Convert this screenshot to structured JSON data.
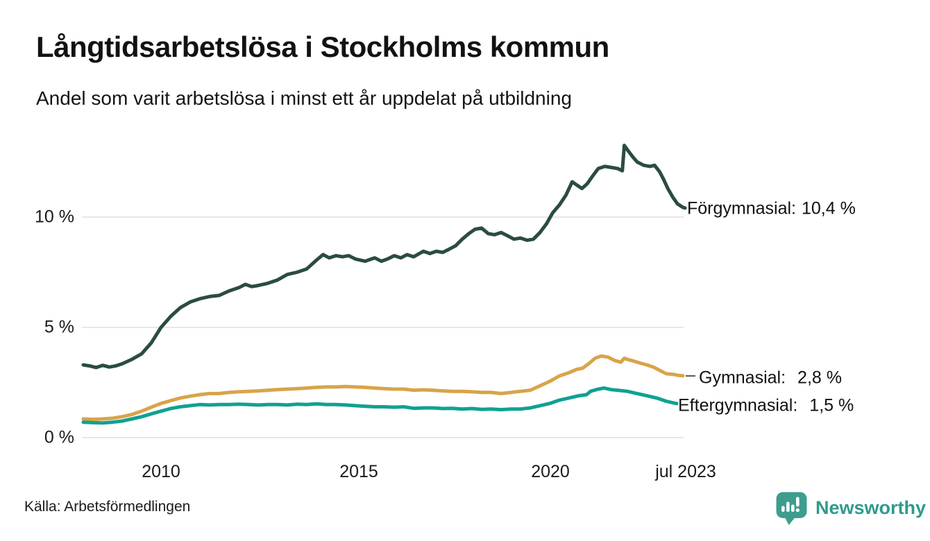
{
  "header": {
    "title": "Långtidsarbetslösa i Stockholms kommun",
    "subtitle": "Andel som varit arbetslösa i minst ett år uppdelat på utbildning"
  },
  "footer": {
    "source": "Källa: Arbetsförmedlingen",
    "brand_name": "Newsworthy",
    "brand_color": "#2e9b8c",
    "brand_icon": "newsworthy-barchart-pin-icon",
    "brand_icon_color": "#3e9d8e"
  },
  "chart_data": {
    "type": "line",
    "title": "Långtidsarbetslösa i Stockholms kommun",
    "subtitle": "Andel som varit arbetslösa i minst ett år uppdelat på utbildning",
    "unit": "%",
    "grid": true,
    "legend_position": "end-of-line-labels-right",
    "x_axis": {
      "ticks": [
        "2010",
        "2015",
        "2020",
        "jul 2023"
      ],
      "tick_years": [
        2010,
        2015,
        2020,
        2023.5
      ],
      "range": [
        2008,
        2023.58
      ]
    },
    "y_axis": {
      "ticks_top_to_bottom": [
        "10 %",
        "5 %",
        "0 %"
      ],
      "tick_values": [
        10,
        5,
        0
      ],
      "range": [
        0,
        13.5
      ]
    },
    "series": [
      {
        "name": "Förgymnasial",
        "label": "Förgymnasial:",
        "value_label": "10,4 %",
        "last_value": 10.4,
        "color": "#2b4c41",
        "points": [
          [
            2008.0,
            3.3
          ],
          [
            2008.17,
            3.25
          ],
          [
            2008.33,
            3.18
          ],
          [
            2008.5,
            3.28
          ],
          [
            2008.67,
            3.2
          ],
          [
            2008.83,
            3.25
          ],
          [
            2009.0,
            3.35
          ],
          [
            2009.25,
            3.55
          ],
          [
            2009.5,
            3.8
          ],
          [
            2009.75,
            4.3
          ],
          [
            2010.0,
            5.0
          ],
          [
            2010.25,
            5.5
          ],
          [
            2010.5,
            5.9
          ],
          [
            2010.75,
            6.15
          ],
          [
            2011.0,
            6.3
          ],
          [
            2011.25,
            6.4
          ],
          [
            2011.5,
            6.45
          ],
          [
            2011.75,
            6.65
          ],
          [
            2012.0,
            6.8
          ],
          [
            2012.17,
            6.95
          ],
          [
            2012.33,
            6.85
          ],
          [
            2012.5,
            6.9
          ],
          [
            2012.75,
            7.0
          ],
          [
            2013.0,
            7.15
          ],
          [
            2013.25,
            7.4
          ],
          [
            2013.5,
            7.5
          ],
          [
            2013.75,
            7.65
          ],
          [
            2014.0,
            8.05
          ],
          [
            2014.17,
            8.3
          ],
          [
            2014.33,
            8.15
          ],
          [
            2014.5,
            8.25
          ],
          [
            2014.67,
            8.2
          ],
          [
            2014.83,
            8.25
          ],
          [
            2015.0,
            8.1
          ],
          [
            2015.25,
            8.0
          ],
          [
            2015.5,
            8.15
          ],
          [
            2015.67,
            8.0
          ],
          [
            2015.83,
            8.1
          ],
          [
            2016.0,
            8.25
          ],
          [
            2016.17,
            8.15
          ],
          [
            2016.33,
            8.3
          ],
          [
            2016.5,
            8.2
          ],
          [
            2016.75,
            8.45
          ],
          [
            2016.92,
            8.35
          ],
          [
            2017.08,
            8.45
          ],
          [
            2017.25,
            8.4
          ],
          [
            2017.42,
            8.55
          ],
          [
            2017.58,
            8.7
          ],
          [
            2017.75,
            9.0
          ],
          [
            2017.92,
            9.25
          ],
          [
            2018.08,
            9.45
          ],
          [
            2018.25,
            9.5
          ],
          [
            2018.42,
            9.25
          ],
          [
            2018.58,
            9.2
          ],
          [
            2018.75,
            9.3
          ],
          [
            2018.92,
            9.15
          ],
          [
            2019.08,
            9.0
          ],
          [
            2019.25,
            9.05
          ],
          [
            2019.42,
            8.95
          ],
          [
            2019.58,
            9.0
          ],
          [
            2019.75,
            9.3
          ],
          [
            2019.92,
            9.7
          ],
          [
            2020.08,
            10.2
          ],
          [
            2020.25,
            10.55
          ],
          [
            2020.42,
            11.0
          ],
          [
            2020.58,
            11.6
          ],
          [
            2020.7,
            11.45
          ],
          [
            2020.83,
            11.3
          ],
          [
            2020.96,
            11.5
          ],
          [
            2021.1,
            11.85
          ],
          [
            2021.25,
            12.2
          ],
          [
            2021.42,
            12.3
          ],
          [
            2021.58,
            12.25
          ],
          [
            2021.75,
            12.2
          ],
          [
            2021.87,
            12.1
          ],
          [
            2021.92,
            13.25
          ],
          [
            2022.0,
            13.05
          ],
          [
            2022.13,
            12.75
          ],
          [
            2022.25,
            12.5
          ],
          [
            2022.42,
            12.35
          ],
          [
            2022.58,
            12.3
          ],
          [
            2022.7,
            12.35
          ],
          [
            2022.83,
            12.05
          ],
          [
            2022.92,
            11.75
          ],
          [
            2023.04,
            11.3
          ],
          [
            2023.17,
            10.9
          ],
          [
            2023.29,
            10.6
          ],
          [
            2023.42,
            10.45
          ],
          [
            2023.5,
            10.4
          ]
        ]
      },
      {
        "name": "Gymnasial",
        "label": "Gymnasial:",
        "value_label": "2,8 %",
        "last_value": 2.8,
        "color": "#d8a44a",
        "points": [
          [
            2008.0,
            0.85
          ],
          [
            2008.25,
            0.83
          ],
          [
            2008.5,
            0.85
          ],
          [
            2008.75,
            0.88
          ],
          [
            2009.0,
            0.95
          ],
          [
            2009.25,
            1.05
          ],
          [
            2009.5,
            1.2
          ],
          [
            2009.75,
            1.38
          ],
          [
            2010.0,
            1.55
          ],
          [
            2010.25,
            1.68
          ],
          [
            2010.5,
            1.8
          ],
          [
            2010.75,
            1.88
          ],
          [
            2011.0,
            1.95
          ],
          [
            2011.25,
            2.0
          ],
          [
            2011.5,
            2.0
          ],
          [
            2011.75,
            2.05
          ],
          [
            2012.0,
            2.08
          ],
          [
            2012.25,
            2.1
          ],
          [
            2012.5,
            2.12
          ],
          [
            2012.75,
            2.15
          ],
          [
            2013.0,
            2.18
          ],
          [
            2013.25,
            2.2
          ],
          [
            2013.5,
            2.22
          ],
          [
            2013.75,
            2.25
          ],
          [
            2014.0,
            2.28
          ],
          [
            2014.25,
            2.3
          ],
          [
            2014.5,
            2.3
          ],
          [
            2014.75,
            2.32
          ],
          [
            2015.0,
            2.3
          ],
          [
            2015.25,
            2.28
          ],
          [
            2015.5,
            2.25
          ],
          [
            2015.75,
            2.22
          ],
          [
            2016.0,
            2.2
          ],
          [
            2016.25,
            2.2
          ],
          [
            2016.5,
            2.15
          ],
          [
            2016.75,
            2.17
          ],
          [
            2017.0,
            2.15
          ],
          [
            2017.25,
            2.12
          ],
          [
            2017.5,
            2.1
          ],
          [
            2017.75,
            2.1
          ],
          [
            2018.0,
            2.08
          ],
          [
            2018.25,
            2.05
          ],
          [
            2018.5,
            2.05
          ],
          [
            2018.75,
            2.0
          ],
          [
            2019.0,
            2.05
          ],
          [
            2019.25,
            2.1
          ],
          [
            2019.5,
            2.15
          ],
          [
            2019.75,
            2.35
          ],
          [
            2020.0,
            2.55
          ],
          [
            2020.25,
            2.8
          ],
          [
            2020.5,
            2.95
          ],
          [
            2020.7,
            3.1
          ],
          [
            2020.85,
            3.15
          ],
          [
            2021.0,
            3.35
          ],
          [
            2021.17,
            3.6
          ],
          [
            2021.33,
            3.7
          ],
          [
            2021.5,
            3.65
          ],
          [
            2021.67,
            3.5
          ],
          [
            2021.83,
            3.42
          ],
          [
            2021.92,
            3.6
          ],
          [
            2022.0,
            3.55
          ],
          [
            2022.17,
            3.47
          ],
          [
            2022.33,
            3.38
          ],
          [
            2022.5,
            3.3
          ],
          [
            2022.67,
            3.2
          ],
          [
            2022.83,
            3.05
          ],
          [
            2023.0,
            2.9
          ],
          [
            2023.17,
            2.87
          ],
          [
            2023.33,
            2.82
          ],
          [
            2023.5,
            2.8
          ]
        ]
      },
      {
        "name": "Eftergymnasial",
        "label": "Eftergymnasial:",
        "value_label": "1,5 %",
        "last_value": 1.5,
        "color": "#10a192",
        "points": [
          [
            2008.0,
            0.7
          ],
          [
            2008.25,
            0.68
          ],
          [
            2008.5,
            0.67
          ],
          [
            2008.75,
            0.7
          ],
          [
            2009.0,
            0.75
          ],
          [
            2009.25,
            0.85
          ],
          [
            2009.5,
            0.95
          ],
          [
            2009.75,
            1.08
          ],
          [
            2010.0,
            1.2
          ],
          [
            2010.25,
            1.32
          ],
          [
            2010.5,
            1.4
          ],
          [
            2010.75,
            1.45
          ],
          [
            2011.0,
            1.5
          ],
          [
            2011.25,
            1.48
          ],
          [
            2011.5,
            1.5
          ],
          [
            2011.75,
            1.5
          ],
          [
            2012.0,
            1.52
          ],
          [
            2012.25,
            1.5
          ],
          [
            2012.5,
            1.48
          ],
          [
            2012.75,
            1.5
          ],
          [
            2013.0,
            1.5
          ],
          [
            2013.25,
            1.48
          ],
          [
            2013.5,
            1.52
          ],
          [
            2013.75,
            1.5
          ],
          [
            2014.0,
            1.53
          ],
          [
            2014.25,
            1.5
          ],
          [
            2014.5,
            1.5
          ],
          [
            2014.75,
            1.48
          ],
          [
            2015.0,
            1.45
          ],
          [
            2015.25,
            1.42
          ],
          [
            2015.5,
            1.4
          ],
          [
            2015.75,
            1.4
          ],
          [
            2016.0,
            1.38
          ],
          [
            2016.25,
            1.4
          ],
          [
            2016.5,
            1.33
          ],
          [
            2016.75,
            1.35
          ],
          [
            2017.0,
            1.35
          ],
          [
            2017.25,
            1.32
          ],
          [
            2017.5,
            1.33
          ],
          [
            2017.75,
            1.3
          ],
          [
            2018.0,
            1.32
          ],
          [
            2018.25,
            1.28
          ],
          [
            2018.5,
            1.3
          ],
          [
            2018.75,
            1.27
          ],
          [
            2019.0,
            1.3
          ],
          [
            2019.25,
            1.3
          ],
          [
            2019.5,
            1.35
          ],
          [
            2019.75,
            1.45
          ],
          [
            2020.0,
            1.55
          ],
          [
            2020.25,
            1.7
          ],
          [
            2020.5,
            1.8
          ],
          [
            2020.75,
            1.9
          ],
          [
            2020.95,
            1.95
          ],
          [
            2021.05,
            2.1
          ],
          [
            2021.25,
            2.2
          ],
          [
            2021.4,
            2.25
          ],
          [
            2021.58,
            2.18
          ],
          [
            2021.75,
            2.15
          ],
          [
            2022.0,
            2.1
          ],
          [
            2022.25,
            2.0
          ],
          [
            2022.5,
            1.9
          ],
          [
            2022.75,
            1.8
          ],
          [
            2023.0,
            1.65
          ],
          [
            2023.25,
            1.55
          ],
          [
            2023.5,
            1.5
          ]
        ]
      }
    ]
  }
}
